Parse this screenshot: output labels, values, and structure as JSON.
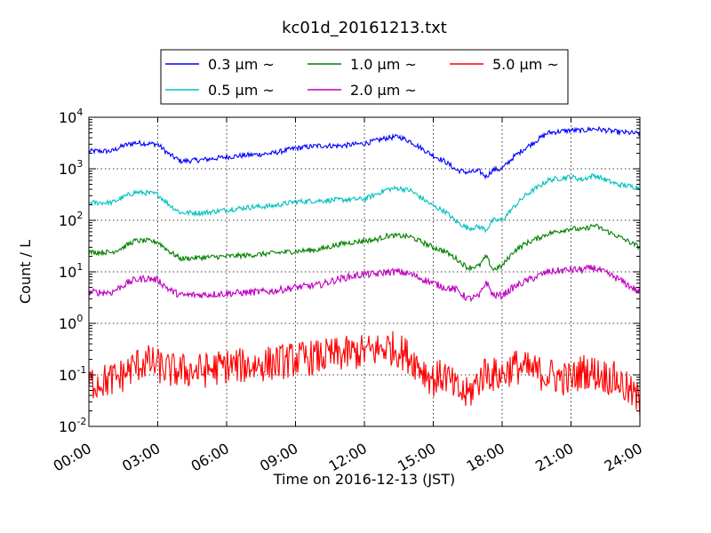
{
  "chart_data": {
    "type": "line",
    "title": "kc01d_20161213.txt",
    "xlabel": "Time on 2016-12-13 (JST)",
    "ylabel": "Count / L",
    "yscale": "log",
    "ylim": [
      0.01,
      10000
    ],
    "xlim": [
      "00:00",
      "24:00"
    ],
    "xticks": [
      "00:00",
      "03:00",
      "06:00",
      "09:00",
      "12:00",
      "15:00",
      "18:00",
      "21:00",
      "24:00"
    ],
    "yticks": [
      {
        "base": "10",
        "exp": "-2"
      },
      {
        "base": "10",
        "exp": "-1"
      },
      {
        "base": "10",
        "exp": "0"
      },
      {
        "base": "10",
        "exp": "1"
      },
      {
        "base": "10",
        "exp": "2"
      },
      {
        "base": "10",
        "exp": "3"
      },
      {
        "base": "10",
        "exp": "4"
      }
    ],
    "grid": true,
    "legend_position": "top-center",
    "x_hours": [
      0,
      1,
      1.5,
      2,
      2.5,
      3,
      3.5,
      4,
      5,
      6,
      7,
      8,
      9,
      10,
      11,
      12,
      12.5,
      13,
      13.5,
      14,
      15,
      15.5,
      16,
      16.5,
      17,
      17.3,
      17.6,
      18,
      18.5,
      19,
      20,
      21,
      21.5,
      22,
      23,
      24
    ],
    "series": [
      {
        "name": "0.3 µm ~",
        "color": "#0000ff",
        "noise": 0.05,
        "values": [
          2200,
          2200,
          2800,
          3200,
          3100,
          3000,
          1900,
          1400,
          1500,
          1700,
          1850,
          2000,
          2500,
          2800,
          2800,
          3100,
          3500,
          4000,
          4200,
          3400,
          1800,
          1400,
          950,
          850,
          900,
          700,
          950,
          1000,
          1700,
          2500,
          5000,
          5600,
          5500,
          6000,
          5200,
          4800
        ]
      },
      {
        "name": "0.5 µm ~",
        "color": "#00bfbf",
        "noise": 0.05,
        "values": [
          220,
          220,
          280,
          350,
          340,
          320,
          200,
          140,
          140,
          160,
          180,
          190,
          230,
          240,
          250,
          260,
          320,
          400,
          420,
          380,
          190,
          150,
          95,
          70,
          75,
          65,
          100,
          100,
          180,
          300,
          600,
          700,
          620,
          750,
          500,
          430
        ]
      },
      {
        "name": "1.0 µm ~",
        "color": "#008000",
        "noise": 0.05,
        "values": [
          24,
          24,
          30,
          40,
          40,
          38,
          25,
          18,
          19,
          20,
          21,
          23,
          25,
          27,
          35,
          40,
          42,
          50,
          50,
          48,
          30,
          25,
          18,
          12,
          13,
          20,
          11,
          13,
          25,
          35,
          55,
          70,
          65,
          80,
          50,
          30
        ]
      },
      {
        "name": "2.0 µm ~",
        "color": "#bf00bf",
        "noise": 0.07,
        "values": [
          4,
          4,
          5.5,
          7,
          7.5,
          7,
          4.5,
          3.5,
          3.6,
          3.8,
          4,
          4.2,
          5,
          5.5,
          7.5,
          9,
          9,
          10,
          10,
          9,
          6,
          5,
          4.5,
          3,
          3.3,
          6.5,
          3.5,
          3.5,
          5,
          6.5,
          10,
          11,
          11,
          12,
          7.5,
          4
        ]
      },
      {
        "name": "5.0 µm ~",
        "color": "#ff0000",
        "noise": 0.35,
        "values": [
          0.07,
          0.08,
          0.1,
          0.15,
          0.18,
          0.15,
          0.12,
          0.12,
          0.12,
          0.15,
          0.15,
          0.17,
          0.2,
          0.22,
          0.25,
          0.28,
          0.3,
          0.35,
          0.3,
          0.22,
          0.08,
          0.1,
          0.05,
          0.04,
          0.08,
          0.12,
          0.1,
          0.1,
          0.15,
          0.13,
          0.1,
          0.08,
          0.12,
          0.11,
          0.08,
          0.03
        ]
      }
    ]
  }
}
